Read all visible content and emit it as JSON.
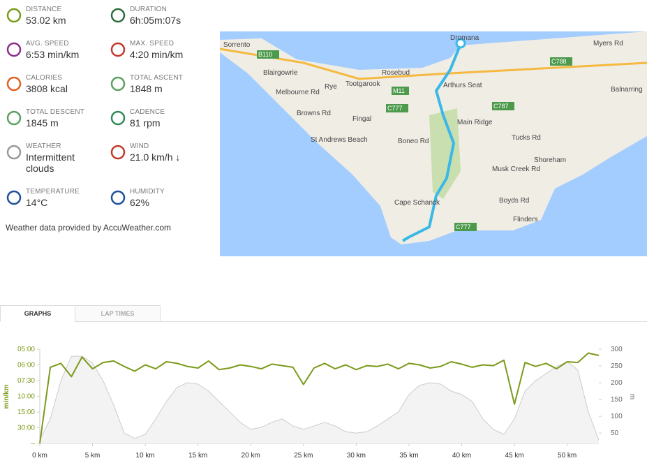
{
  "stats": [
    {
      "label": "DISTANCE",
      "value": "53.02 km"
    },
    {
      "label": "DURATION",
      "value": "6h:05m:07s"
    },
    {
      "label": "AVG. SPEED",
      "value": "6:53 min/km"
    },
    {
      "label": "MAX. SPEED",
      "value": "4:20 min/km"
    },
    {
      "label": "CALORIES",
      "value": "3808 kcal"
    },
    {
      "label": "TOTAL ASCENT",
      "value": "1848 m"
    },
    {
      "label": "TOTAL DESCENT",
      "value": "1845 m"
    },
    {
      "label": "CADENCE",
      "value": "81 rpm"
    },
    {
      "label": "WEATHER",
      "value": "Intermittent clouds"
    },
    {
      "label": "WIND",
      "value": "21.0 km/h ↓"
    },
    {
      "label": "TEMPERATURE",
      "value": "14°C"
    },
    {
      "label": "HUMIDITY",
      "value": "62%"
    }
  ],
  "weather_source": "Weather data provided by AccuWeather.com",
  "map": {
    "labels": [
      "Sorrento",
      "Dromana",
      "Blairgowrie",
      "Rye",
      "Tootgarook",
      "Rosebud",
      "Arthurs Seat",
      "Fingal",
      "St Andrews Beach",
      "Main Ridge",
      "Cape Schanck",
      "Flinders",
      "Shoreham",
      "Balnarring",
      "Myers Rd",
      "Browns Rd",
      "Melbourne Rd",
      "Boneo Rd",
      "Tucks Rd",
      "Boyds Rd",
      "Musk Creek Rd",
      "B110",
      "M11",
      "C777",
      "C787",
      "C788",
      "C777"
    ]
  },
  "tabs": [
    "GRAPHS",
    "LAP TIMES"
  ],
  "chart_data": {
    "type": "line",
    "ylabel": "min/km",
    "y2label": "m",
    "x": [
      0,
      1,
      2,
      3,
      4,
      5,
      6,
      7,
      8,
      9,
      10,
      11,
      12,
      13,
      14,
      15,
      16,
      17,
      18,
      19,
      20,
      21,
      22,
      23,
      24,
      25,
      26,
      27,
      28,
      29,
      30,
      31,
      32,
      33,
      34,
      35,
      36,
      37,
      38,
      39,
      40,
      41,
      42,
      43,
      44,
      45,
      46,
      47,
      48,
      49,
      50,
      51,
      52,
      53
    ],
    "xlim": [
      0,
      53
    ],
    "xticks": [
      {
        "value": 0,
        "label": "0 km"
      },
      {
        "value": 5,
        "label": "5 km"
      },
      {
        "value": 10,
        "label": "10 km"
      },
      {
        "value": 15,
        "label": "15 km"
      },
      {
        "value": 20,
        "label": "20 km"
      },
      {
        "value": 25,
        "label": "25 km"
      },
      {
        "value": 30,
        "label": "30 km"
      },
      {
        "value": 35,
        "label": "35 km"
      },
      {
        "value": 40,
        "label": "40 km"
      },
      {
        "value": 45,
        "label": "45 km"
      },
      {
        "value": 50,
        "label": "50 km"
      }
    ],
    "ylim": [
      0,
      12
    ],
    "yticks": [
      {
        "value": 12,
        "label": "05:00"
      },
      {
        "value": 10,
        "label": "06:00"
      },
      {
        "value": 8,
        "label": "07:30"
      },
      {
        "value": 6,
        "label": "10:00"
      },
      {
        "value": 4,
        "label": "15:00"
      },
      {
        "value": 2,
        "label": "30:00"
      },
      {
        "value": 0,
        "label": "–"
      }
    ],
    "y2lim": [
      19,
      300
    ],
    "y2ticks": [
      300,
      250,
      200,
      150,
      100,
      50
    ],
    "series": [
      {
        "color": "#cccccc",
        "fill": "#f3f3f3",
        "axis": "y2",
        "values": [
          29,
          92,
          206,
          279,
          279,
          259,
          206,
          134,
          50,
          34,
          46,
          92,
          144,
          186,
          200,
          196,
          175,
          144,
          113,
          82,
          61,
          67,
          82,
          92,
          71,
          61,
          71,
          82,
          71,
          54,
          50,
          54,
          71,
          92,
          113,
          165,
          192,
          200,
          196,
          175,
          165,
          144,
          92,
          61,
          46,
          92,
          175,
          206,
          227,
          248,
          263,
          238,
          113,
          29
        ]
      },
      {
        "color": "#7a9a1a",
        "values": [
          0,
          9.7,
          10.2,
          8.5,
          11,
          9.5,
          10.3,
          10.5,
          9.8,
          9.2,
          10,
          9.5,
          10.4,
          10.2,
          9.8,
          9.6,
          10.5,
          9.4,
          9.6,
          10,
          9.8,
          9.5,
          10.1,
          9.9,
          9.7,
          7.5,
          9.6,
          10.2,
          9.5,
          10,
          9.4,
          9.9,
          9.8,
          10.1,
          9.5,
          10.2,
          10,
          9.6,
          9.8,
          10.4,
          10.1,
          9.7,
          10,
          9.9,
          10.6,
          5,
          10.3,
          9.8,
          10.2,
          9.5,
          10.4,
          10.3,
          11.5,
          11.2
        ]
      }
    ]
  }
}
